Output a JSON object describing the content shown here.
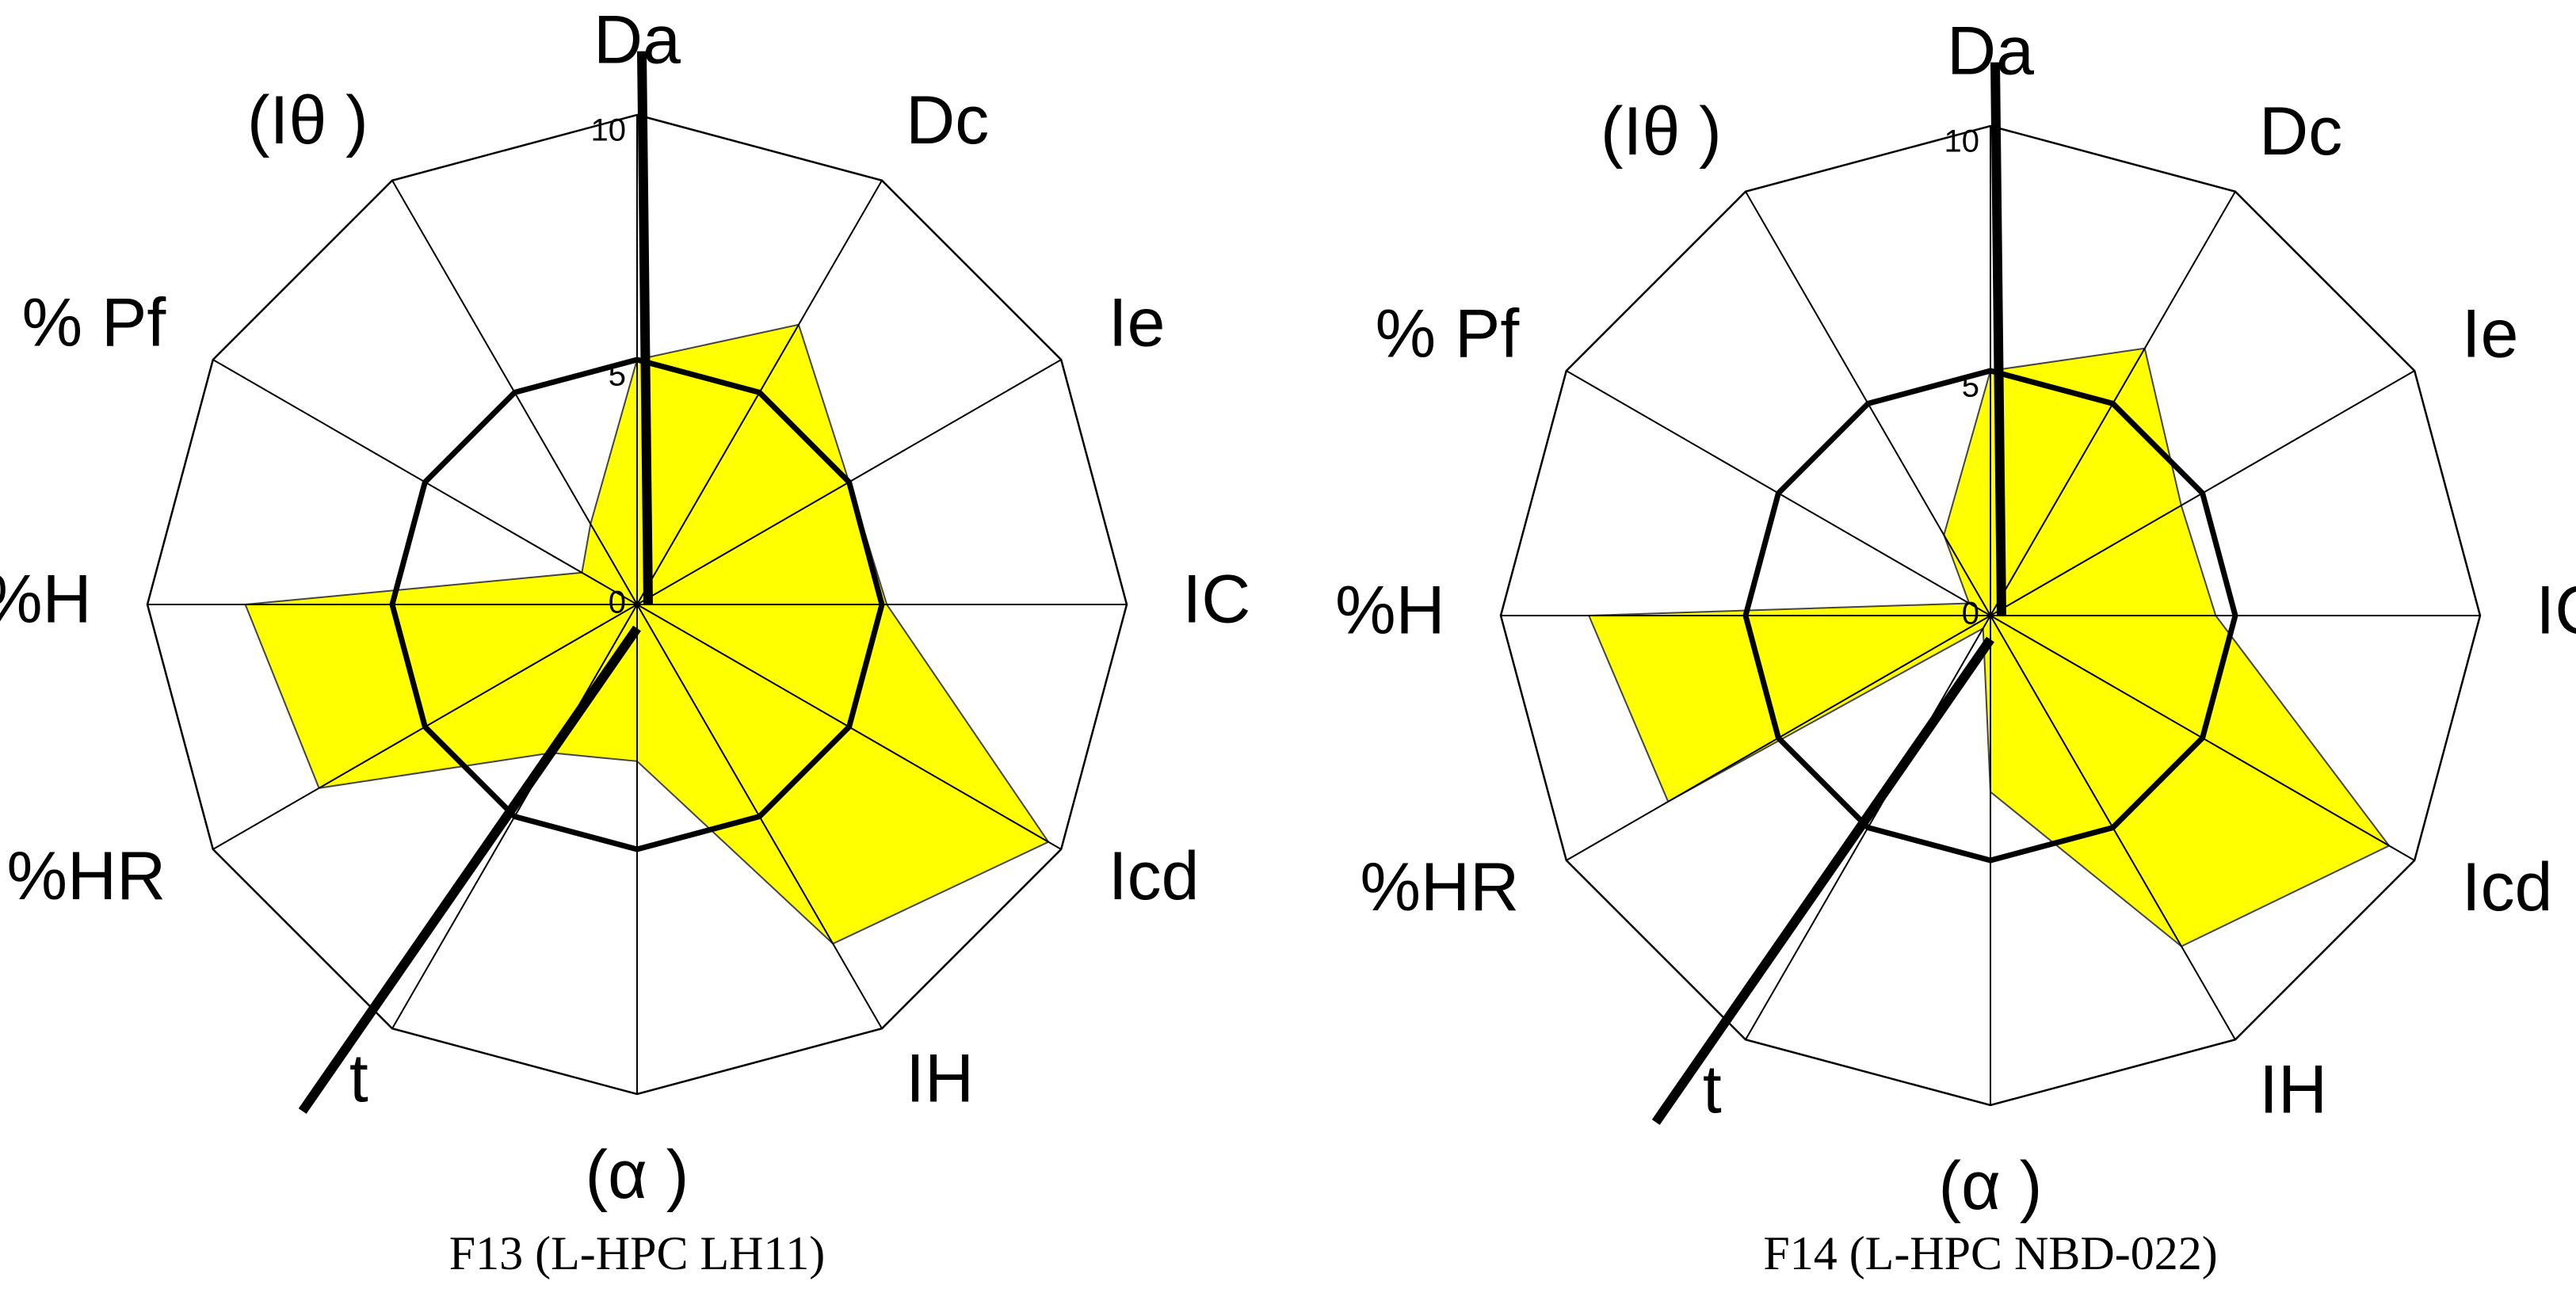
{
  "chart_data": [
    {
      "type": "radar",
      "title": "F13 (L-HPC LH11)",
      "categories": [
        "Da",
        "Dc",
        "Ie",
        "IC",
        "Icd",
        "IH",
        "(α )",
        "t",
        "%HR",
        "%H",
        "% Pf",
        "(Iθ )"
      ],
      "values": [
        5,
        6.6,
        5,
        5.1,
        9.7,
        8,
        3.2,
        3.5,
        7.5,
        8,
        1.3,
        1.9
      ],
      "color": "#ffff00",
      "rlim": [
        0,
        10
      ],
      "rticks": [
        0,
        5,
        10
      ]
    },
    {
      "type": "radar",
      "title": "F14 (L-HPC NBD-022)",
      "categories": [
        "Da",
        "Dc",
        "Ie",
        "IC",
        "Icd",
        "IH",
        "(α )",
        "t",
        "%HR",
        "%H",
        "% Pf",
        "(Iθ )"
      ],
      "values": [
        5,
        6.3,
        4.5,
        4.6,
        9.4,
        7.8,
        3.6,
        0.3,
        7.6,
        8.2,
        0.5,
        1.9
      ],
      "color": "#ffff00",
      "rlim": [
        0,
        10
      ],
      "rticks": [
        0,
        5,
        10
      ]
    }
  ]
}
